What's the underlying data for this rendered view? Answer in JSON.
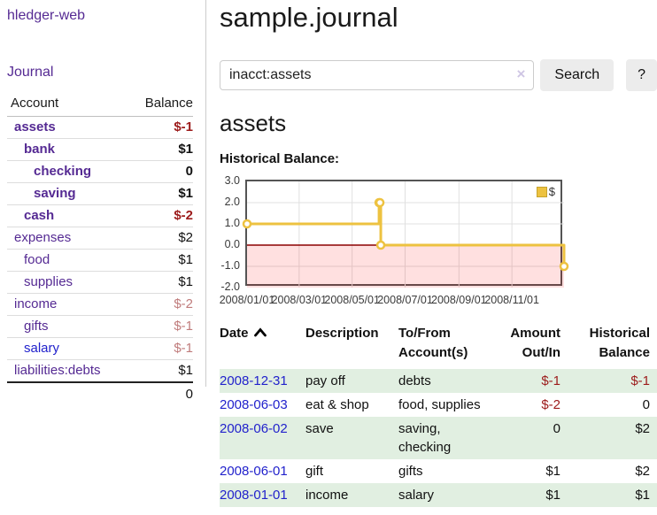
{
  "app": {
    "brand": "hledger-web"
  },
  "sidebar": {
    "journal_link": "Journal",
    "table": {
      "col_account": "Account",
      "col_balance": "Balance",
      "accounts": [
        {
          "name": "assets",
          "balance": "$-1",
          "depth": 1,
          "bold": true
        },
        {
          "name": "bank",
          "balance": "$1",
          "depth": 2,
          "bold": true
        },
        {
          "name": "checking",
          "balance": "0",
          "depth": 3,
          "bold": true
        },
        {
          "name": "saving",
          "balance": "$1",
          "depth": 3,
          "bold": true
        },
        {
          "name": "cash",
          "balance": "$-2",
          "depth": 2,
          "bold": true
        },
        {
          "name": "expenses",
          "balance": "$2",
          "depth": 1,
          "bold": false
        },
        {
          "name": "food",
          "balance": "$1",
          "depth": 2,
          "bold": false
        },
        {
          "name": "supplies",
          "balance": "$1",
          "depth": 2,
          "bold": false
        },
        {
          "name": "income",
          "balance": "$-2",
          "depth": 1,
          "bold": false
        },
        {
          "name": "gifts",
          "balance": "$-1",
          "depth": 2,
          "bold": false
        },
        {
          "name": "salary",
          "balance": "$-1",
          "depth": 2,
          "bold": false,
          "unvisited": true
        },
        {
          "name": "liabilities:debts",
          "balance": "$1",
          "depth": 1,
          "bold": false
        }
      ],
      "total": "0"
    }
  },
  "header": {
    "title": "sample.journal"
  },
  "search": {
    "value": "inacct:assets",
    "clear_icon": "×",
    "button": "Search",
    "help_button": "?"
  },
  "account_page": {
    "heading": "assets",
    "chart_label": "Historical Balance:"
  },
  "chart_data": {
    "type": "line",
    "style": "step-after",
    "series": [
      {
        "name": "$",
        "color": "#edc240",
        "points": [
          [
            "2008-01-01",
            1
          ],
          [
            "2008-06-01",
            2
          ],
          [
            "2008-06-02",
            2
          ],
          [
            "2008-06-03",
            0
          ],
          [
            "2008-12-31",
            -1
          ]
        ]
      }
    ],
    "xlim": [
      "2008-01-01",
      "2008-12-31"
    ],
    "ylim": [
      -2.0,
      3.0
    ],
    "x_ticks": [
      "2008/01/01",
      "2008/03/01",
      "2008/05/01",
      "2008/07/01",
      "2008/09/01",
      "2008/11/01"
    ],
    "y_ticks": [
      "3.0",
      "2.0",
      "1.0",
      "0.0",
      "-1.0",
      "-2.0"
    ],
    "grid": true,
    "legend": {
      "label": "$",
      "position": "top-right"
    },
    "zero_line_color": "#8b0000",
    "negative_region_color": "#ffdddd"
  },
  "transactions": {
    "columns": [
      {
        "label": "Date",
        "label2": "",
        "sort": "asc"
      },
      {
        "label": "Description",
        "label2": ""
      },
      {
        "label": "To/From",
        "label2": "Account(s)"
      },
      {
        "label": "Amount",
        "label2": "Out/In"
      },
      {
        "label": "Historical",
        "label2": "Balance"
      }
    ],
    "rows": [
      {
        "date": "2008-12-31",
        "description": "pay off",
        "accounts": "debts",
        "amount": "$-1",
        "balance": "$-1"
      },
      {
        "date": "2008-06-03",
        "description": "eat & shop",
        "accounts": "food, supplies",
        "amount": "$-2",
        "balance": "0"
      },
      {
        "date": "2008-06-02",
        "description": "save",
        "accounts": "saving,\nchecking",
        "amount": "0",
        "balance": "$2"
      },
      {
        "date": "2008-06-01",
        "description": "gift",
        "accounts": "gifts",
        "amount": "$1",
        "balance": "$2"
      },
      {
        "date": "2008-01-01",
        "description": "income",
        "accounts": "salary",
        "amount": "$1",
        "balance": "$1"
      }
    ]
  },
  "colors": {
    "link_purple": "#552a93",
    "link_blue": "#2222cc",
    "negative_strong": "#9c1b1b",
    "negative_soft": "#c07c7c",
    "row_green": "#e1efe1",
    "chart_line_gold": "#edc240",
    "chart_zero_line": "#8b0000",
    "chart_negative_fill": "#ffdddd"
  }
}
